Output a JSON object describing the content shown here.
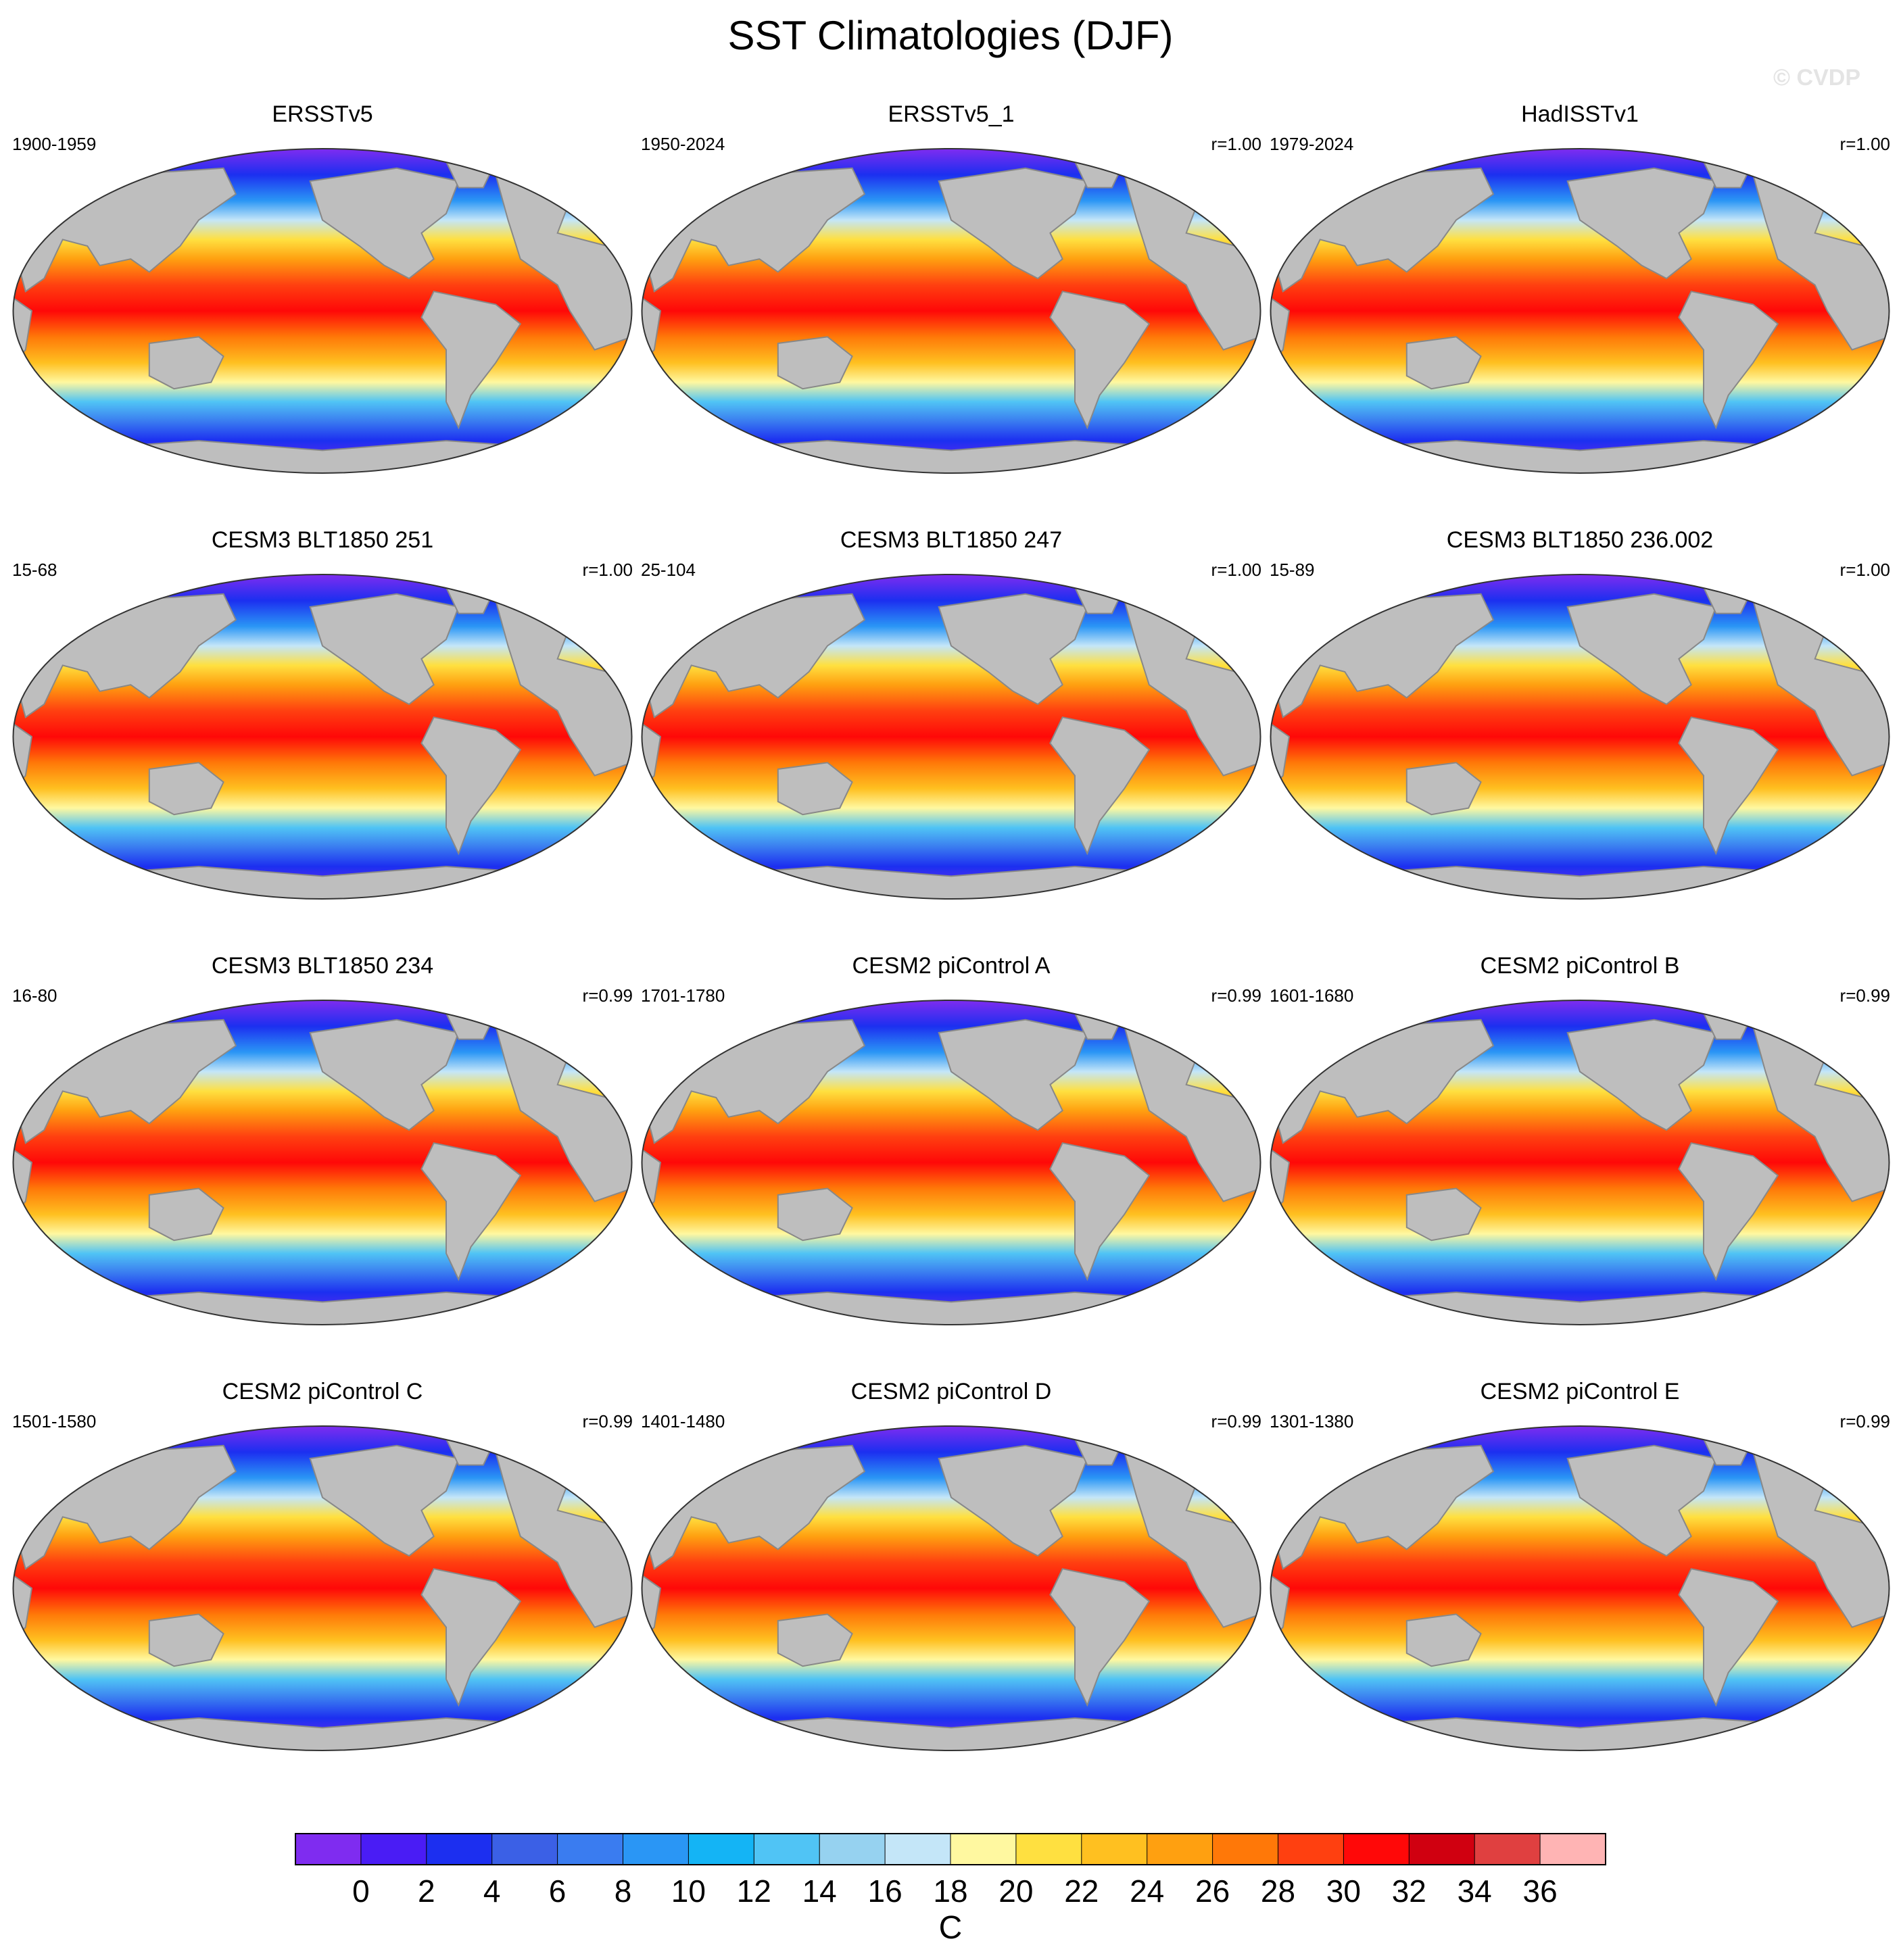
{
  "title": "SST Climatologies (DJF)",
  "watermark": "© CVDP",
  "panels": [
    {
      "title": "ERSSTv5",
      "period": "1900-1959",
      "corr": ""
    },
    {
      "title": "ERSSTv5_1",
      "period": "1950-2024",
      "corr": "r=1.00"
    },
    {
      "title": "HadISSTv1",
      "period": "1979-2024",
      "corr": "r=1.00"
    },
    {
      "title": "CESM3 BLT1850 251",
      "period": "15-68",
      "corr": "r=1.00"
    },
    {
      "title": "CESM3 BLT1850 247",
      "period": "25-104",
      "corr": "r=1.00"
    },
    {
      "title": "CESM3 BLT1850 236.002",
      "period": "15-89",
      "corr": "r=1.00"
    },
    {
      "title": "CESM3 BLT1850 234",
      "period": "16-80",
      "corr": "r=0.99"
    },
    {
      "title": "CESM2 piControl A",
      "period": "1701-1780",
      "corr": "r=0.99"
    },
    {
      "title": "CESM2 piControl B",
      "period": "1601-1680",
      "corr": "r=0.99"
    },
    {
      "title": "CESM2 piControl C",
      "period": "1501-1580",
      "corr": "r=0.99"
    },
    {
      "title": "CESM2 piControl D",
      "period": "1401-1480",
      "corr": "r=0.99"
    },
    {
      "title": "CESM2 piControl E",
      "period": "1301-1380",
      "corr": "r=0.99"
    }
  ],
  "colorbar": {
    "labels": [
      "0",
      "2",
      "4",
      "6",
      "8",
      "10",
      "12",
      "14",
      "16",
      "18",
      "20",
      "22",
      "24",
      "26",
      "28",
      "30",
      "32",
      "34",
      "36"
    ],
    "unit": "C",
    "colors": [
      "#7f2cf0",
      "#4a1cf5",
      "#1c2ff0",
      "#3b60e6",
      "#3a7cf0",
      "#2a96f5",
      "#14b4f5",
      "#50c4f5",
      "#96d2f0",
      "#c4e6f8",
      "#fff8a0",
      "#ffe040",
      "#ffc020",
      "#ffa010",
      "#ff7808",
      "#ff4010",
      "#ff0808",
      "#d00010",
      "#e04040",
      "#ffb4b4"
    ]
  },
  "map_colors": {
    "land": "#bebebe",
    "coast": "#888888"
  }
}
